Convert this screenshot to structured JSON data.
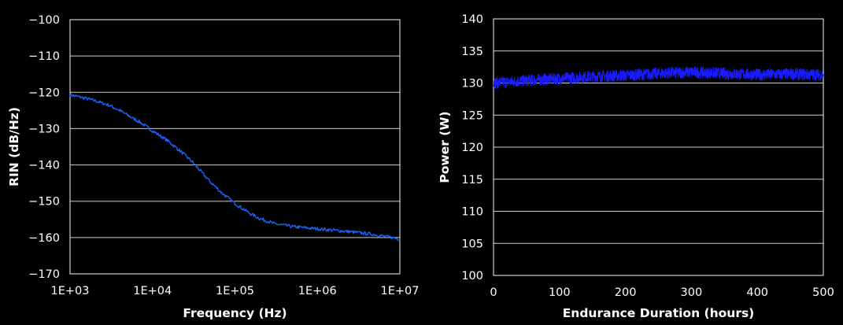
{
  "chart_data": [
    {
      "type": "line",
      "xlabel": "Frequency (Hz)",
      "ylabel": "RIN (dB/Hz)",
      "xscale": "log",
      "xlim": [
        1000,
        10000000
      ],
      "ylim": [
        -170,
        -100
      ],
      "grid": "horizontal",
      "xticks": [
        1000,
        10000,
        100000,
        1000000,
        10000000
      ],
      "xtick_labels": [
        "1E+03",
        "1E+04",
        "1E+05",
        "1E+06",
        "1E+07"
      ],
      "yticks": [
        -100,
        -110,
        -120,
        -130,
        -140,
        -150,
        -160,
        -170
      ],
      "ytick_labels": [
        "-100",
        "-110",
        "-120",
        "-130",
        "-140",
        "-150",
        "-160",
        "-170"
      ],
      "line_color": "#1565ff",
      "series": [
        {
          "x": [
            1000,
            1500,
            2000,
            3000,
            4000,
            5000,
            7000,
            10000,
            15000,
            20000,
            30000,
            40000,
            50000,
            70000,
            100000,
            150000,
            200000,
            250000,
            300000,
            500000,
            1000000,
            2000000,
            3000000,
            5000000,
            10000000
          ],
          "y": [
            -120.7,
            -121.6,
            -122.3,
            -123.6,
            -125.0,
            -126.3,
            -128.2,
            -130.6,
            -133.2,
            -135.5,
            -139.0,
            -142.2,
            -144.6,
            -147.8,
            -150.6,
            -153.3,
            -154.8,
            -155.5,
            -156.2,
            -157.0,
            -157.6,
            -158.2,
            -158.6,
            -159.2,
            -160.4
          ]
        }
      ]
    },
    {
      "type": "line",
      "xlabel": "Endurance Duration (hours)",
      "ylabel": "Power (W)",
      "xlim": [
        0,
        500
      ],
      "ylim": [
        100,
        140
      ],
      "grid": "horizontal",
      "xticks": [
        0,
        100,
        200,
        300,
        400,
        500
      ],
      "yticks": [
        100,
        105,
        110,
        115,
        120,
        125,
        130,
        135,
        140
      ],
      "line_color": "#1a1aff",
      "series": [
        {
          "x": [
            0,
            50,
            100,
            150,
            200,
            250,
            300,
            350,
            400,
            450,
            500
          ],
          "y": [
            130.0,
            130.4,
            130.7,
            131.0,
            131.2,
            131.5,
            131.7,
            131.5,
            131.3,
            131.4,
            131.3
          ]
        }
      ]
    }
  ]
}
